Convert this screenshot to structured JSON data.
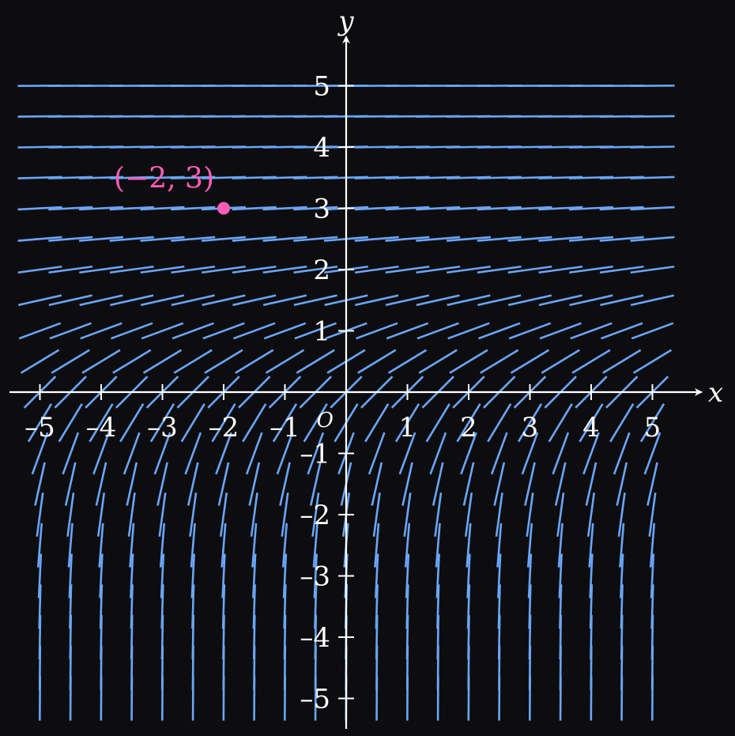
{
  "axes": {
    "x_label": "x",
    "y_label": "y",
    "origin_label": "O",
    "x_range": [
      -5,
      5
    ],
    "y_range": [
      -5,
      5
    ],
    "x_ticks": [
      -5,
      -4,
      -3,
      -2,
      -1,
      1,
      2,
      3,
      4,
      5
    ],
    "y_ticks": [
      -5,
      -4,
      -3,
      -2,
      -1,
      1,
      2,
      3,
      4,
      5
    ],
    "x_tick_labels": [
      "–5",
      "–4",
      "–3",
      "–2",
      "–1",
      "1",
      "2",
      "3",
      "4",
      "5"
    ],
    "y_tick_labels": [
      "–5",
      "–4",
      "–3",
      "–2",
      "–1",
      "1",
      "2",
      "3",
      "4",
      "5"
    ],
    "color": "#ffffff"
  },
  "slope_field": {
    "grid_x_min": -5,
    "grid_x_max": 5,
    "grid_y_min": -5,
    "grid_y_max": 5,
    "step": 0.5,
    "color": "#6aa6f8"
  },
  "point": {
    "x": -2,
    "y": 3,
    "label": "(−2, 3)",
    "color": "#ff5db8"
  }
}
